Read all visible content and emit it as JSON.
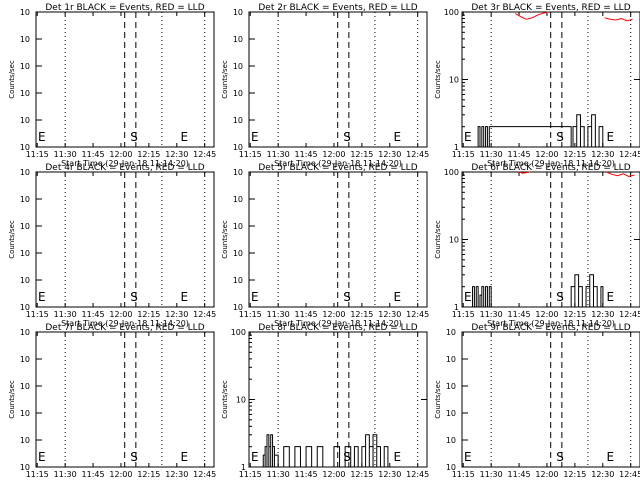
{
  "chart_data": [
    {
      "type": "line",
      "title": "Det 1r BLACK = Events, RED = LLD",
      "xlabel": "Start Time (29-Jan-18 11:14:20)",
      "ylabel": "Counts/sec",
      "scale": "log",
      "xlim": [
        "11:14:20",
        "12:50:00"
      ],
      "ylim": [
        1e-09,
        1e-08
      ],
      "x_ticks": [
        "11:15",
        "11:30",
        "11:45",
        "12:00",
        "12:15",
        "12:30",
        "12:45"
      ],
      "y_ticks": [
        "10^{-9}",
        "10^{-8}"
      ],
      "y_tick_labels": [
        "10",
        "10",
        "10",
        "10",
        "10",
        "10"
      ],
      "markers": [
        {
          "label": "E",
          "x": "11:15"
        },
        {
          "label": "S",
          "x": "12:05"
        },
        {
          "label": "E",
          "x": "12:32"
        }
      ],
      "series": []
    },
    {
      "type": "line",
      "title": "Det 2r BLACK = Events, RED = LLD",
      "xlabel": "Start Time (29-Jan-18 11:14:20)",
      "ylabel": "Counts/sec",
      "scale": "log",
      "xlim": [
        "11:14:20",
        "12:50:00"
      ],
      "ylim": [
        1e-09,
        1e-08
      ],
      "x_ticks": [
        "11:15",
        "11:30",
        "11:45",
        "12:00",
        "12:15",
        "12:30",
        "12:45"
      ],
      "y_tick_labels": [
        "10",
        "10",
        "10",
        "10",
        "10",
        "10"
      ],
      "markers": [
        {
          "label": "E",
          "x": "11:15"
        },
        {
          "label": "S",
          "x": "12:05"
        },
        {
          "label": "E",
          "x": "12:32"
        }
      ],
      "series": []
    },
    {
      "type": "line",
      "title": "Det 3r BLACK = Events, RED = LLD",
      "xlabel": "Start Time (29-Jan-18 11:14:20)",
      "ylabel": "Counts/sec",
      "scale": "log",
      "xlim": [
        "11:14:20",
        "12:50:00"
      ],
      "ylim": [
        1,
        100
      ],
      "y_ticks": [
        1,
        10,
        100
      ],
      "x_ticks": [
        "11:15",
        "11:30",
        "11:45",
        "12:00",
        "12:15",
        "12:30",
        "12:45"
      ],
      "markers": [
        {
          "label": "E",
          "x": "11:15"
        },
        {
          "label": "S",
          "x": "12:05"
        },
        {
          "label": "E",
          "x": "12:32"
        }
      ],
      "series": [
        {
          "color": "#ff0000",
          "x": [
            "11:43",
            "11:46",
            "11:49",
            "11:52",
            "11:55",
            "11:58",
            "12:01"
          ],
          "y": [
            95,
            85,
            78,
            82,
            90,
            96,
            100
          ]
        },
        {
          "color": "#ff0000",
          "x": [
            "12:31",
            "12:34",
            "12:37",
            "12:40",
            "12:43",
            "12:46"
          ],
          "y": [
            82,
            78,
            76,
            80,
            74,
            78
          ]
        },
        {
          "color": "#000000",
          "x": [
            "11:22",
            "11:23",
            "11:24",
            "11:25",
            "11:26",
            "11:27",
            "11:28",
            "11:29",
            "12:13",
            "12:14",
            "12:16",
            "12:18",
            "12:20",
            "12:22",
            "12:24",
            "12:26",
            "12:28",
            "12:30"
          ],
          "y": [
            1,
            2,
            1,
            2,
            1,
            2,
            1,
            2,
            1,
            2,
            3,
            2,
            1,
            2,
            3,
            1,
            2,
            1
          ]
        }
      ]
    },
    {
      "type": "line",
      "title": "Det 4r BLACK = Events, RED = LLD",
      "xlabel": "Start Time (29-Jan-18 11:14:20)",
      "ylabel": "Counts/sec",
      "scale": "log",
      "xlim": [
        "11:14:20",
        "12:50:00"
      ],
      "ylim": [
        1e-09,
        1e-08
      ],
      "x_ticks": [
        "11:15",
        "11:30",
        "11:45",
        "12:00",
        "12:15",
        "12:30",
        "12:45"
      ],
      "y_tick_labels": [
        "10",
        "10",
        "10",
        "10",
        "10",
        "10"
      ],
      "markers": [
        {
          "label": "E",
          "x": "11:15"
        },
        {
          "label": "S",
          "x": "12:05"
        },
        {
          "label": "E",
          "x": "12:32"
        }
      ],
      "series": []
    },
    {
      "type": "line",
      "title": "Det 5r BLACK = Events, RED = LLD",
      "xlabel": "Start Time (29-Jan-18 11:14:20)",
      "ylabel": "Counts/sec",
      "scale": "log",
      "xlim": [
        "11:14:20",
        "12:50:00"
      ],
      "ylim": [
        1e-09,
        1e-08
      ],
      "x_ticks": [
        "11:15",
        "11:30",
        "11:45",
        "12:00",
        "12:15",
        "12:30",
        "12:45"
      ],
      "y_tick_labels": [
        "10",
        "10",
        "10",
        "10",
        "10",
        "10"
      ],
      "markers": [
        {
          "label": "E",
          "x": "11:15"
        },
        {
          "label": "S",
          "x": "12:05"
        },
        {
          "label": "E",
          "x": "12:32"
        }
      ],
      "series": []
    },
    {
      "type": "line",
      "title": "Det 6r BLACK = Events, RED = LLD",
      "xlabel": "Start Time (29-Jan-18 11:14:20)",
      "ylabel": "Counts/sec",
      "scale": "log",
      "xlim": [
        "11:14:20",
        "12:50:00"
      ],
      "ylim": [
        1,
        100
      ],
      "y_ticks": [
        1,
        10,
        100
      ],
      "x_ticks": [
        "11:15",
        "11:30",
        "11:45",
        "12:00",
        "12:15",
        "12:30",
        "12:45"
      ],
      "markers": [
        {
          "label": "E",
          "x": "11:15"
        },
        {
          "label": "S",
          "x": "12:05"
        },
        {
          "label": "E",
          "x": "12:32"
        }
      ],
      "series": [
        {
          "color": "#ff0000",
          "x": [
            "11:45",
            "11:47",
            "11:49",
            "11:51"
          ],
          "y": [
            100,
            96,
            98,
            100
          ]
        },
        {
          "color": "#ff0000",
          "x": [
            "12:32",
            "12:35",
            "12:38",
            "12:41",
            "12:44",
            "12:47"
          ],
          "y": [
            100,
            92,
            88,
            94,
            86,
            90
          ]
        },
        {
          "color": "#000000",
          "x": [
            "11:19",
            "11:20",
            "11:21",
            "11:22",
            "11:23",
            "11:24",
            "11:25",
            "11:26",
            "11:27",
            "11:28",
            "11:29",
            "11:30",
            "12:13",
            "12:15",
            "12:17",
            "12:19",
            "12:21",
            "12:23",
            "12:25",
            "12:27",
            "12:29"
          ],
          "y": [
            1,
            2,
            1,
            2,
            1,
            1.5,
            2,
            1,
            2,
            1,
            2,
            1,
            2,
            3,
            2,
            1,
            2,
            3,
            2,
            1,
            2
          ]
        }
      ]
    },
    {
      "type": "line",
      "title": "Det 7r BLACK = Events, RED = LLD",
      "xlabel": "Start Time (29-Jan-18 11:14:20)",
      "ylabel": "Counts/sec",
      "scale": "log",
      "xlim": [
        "11:14:20",
        "12:50:00"
      ],
      "ylim": [
        1e-09,
        1e-08
      ],
      "x_ticks": [
        "11:15",
        "11:30",
        "11:45",
        "12:00",
        "12:15",
        "12:30",
        "12:45"
      ],
      "y_tick_labels": [
        "10",
        "10",
        "10",
        "10",
        "10",
        "10"
      ],
      "markers": [
        {
          "label": "E",
          "x": "11:15"
        },
        {
          "label": "S",
          "x": "12:05"
        },
        {
          "label": "E",
          "x": "12:32"
        }
      ],
      "series": []
    },
    {
      "type": "line",
      "title": "Det 8r BLACK = Events, RED = LLD",
      "xlabel": "Start Time (29-Jan-18 11:14:20)",
      "ylabel": "Counts/sec",
      "scale": "log",
      "xlim": [
        "11:14:20",
        "12:50:00"
      ],
      "ylim": [
        1,
        100
      ],
      "y_ticks": [
        1,
        10,
        100
      ],
      "x_ticks": [
        "11:15",
        "11:30",
        "11:45",
        "12:00",
        "12:15",
        "12:30",
        "12:45"
      ],
      "markers": [
        {
          "label": "E",
          "x": "11:15"
        },
        {
          "label": "S",
          "x": "12:05"
        },
        {
          "label": "E",
          "x": "12:32"
        }
      ],
      "series": [
        {
          "color": "#000000",
          "x": [
            "11:22",
            "11:23",
            "11:24",
            "11:25",
            "11:26",
            "11:27",
            "11:28",
            "11:30",
            "11:33",
            "11:36",
            "11:39",
            "11:42",
            "11:45",
            "11:48",
            "11:51",
            "11:54",
            "11:57",
            "12:00",
            "12:03",
            "12:06",
            "12:09",
            "12:11",
            "12:13",
            "12:15",
            "12:17",
            "12:19",
            "12:21",
            "12:23",
            "12:25",
            "12:27",
            "12:29",
            "12:31"
          ],
          "y": [
            1.5,
            2,
            3,
            2,
            3,
            2,
            1.5,
            1,
            2,
            1,
            2,
            1,
            2,
            1,
            2,
            1,
            1,
            2,
            1,
            2,
            1,
            2,
            1,
            2,
            3,
            2,
            3,
            2,
            1,
            2,
            1,
            1
          ]
        }
      ]
    },
    {
      "type": "line",
      "title": "Det 9r BLACK = Events, RED = LLD",
      "xlabel": "Start Time (29-Jan-18 11:14:20)",
      "ylabel": "Counts/sec",
      "scale": "log",
      "xlim": [
        "11:14:20",
        "12:50:00"
      ],
      "ylim": [
        1e-09,
        1e-08
      ],
      "x_ticks": [
        "11:15",
        "11:30",
        "11:45",
        "12:00",
        "12:15",
        "12:30",
        "12:45"
      ],
      "y_tick_labels": [
        "10",
        "10",
        "10",
        "10",
        "10",
        "10"
      ],
      "markers": [
        {
          "label": "E",
          "x": "11:15"
        },
        {
          "label": "S",
          "x": "12:05"
        },
        {
          "label": "E",
          "x": "12:32"
        }
      ],
      "series": []
    }
  ]
}
